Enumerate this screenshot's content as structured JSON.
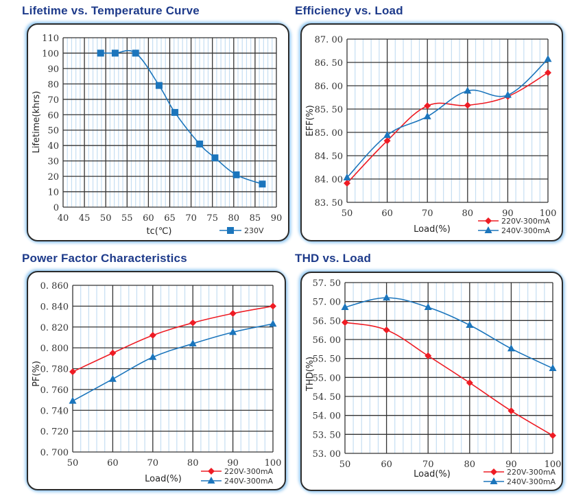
{
  "chart_data": [
    {
      "id": "lifetime",
      "type": "line",
      "title": "Lifetime vs. Temperature Curve",
      "xlabel": "tc(℃)",
      "ylabel": "Lifetime(khrs)",
      "xlim": [
        40,
        90
      ],
      "ylim": [
        0,
        110
      ],
      "xticks": [
        "40",
        "45",
        "50",
        "55",
        "60",
        "65",
        "70",
        "75",
        "80",
        "85",
        "90"
      ],
      "yticks": [
        "0",
        "10",
        "20",
        "30",
        "40",
        "50",
        "60",
        "70",
        "80",
        "90",
        "100",
        "110"
      ],
      "grid": true,
      "legend_position": "bottom-right",
      "series": [
        {
          "name": "230V",
          "color": "#1b75bc",
          "marker": "square",
          "x": [
            48.8,
            52.2,
            57.0,
            62.5,
            66.2,
            72.0,
            75.6,
            80.6,
            86.7
          ],
          "y": [
            100,
            100,
            100,
            79,
            61.5,
            41,
            32,
            21,
            15
          ]
        }
      ]
    },
    {
      "id": "efficiency",
      "type": "line",
      "title": "Efficiency vs. Load",
      "xlabel": "Load(%)",
      "ylabel": "EFF(%)",
      "xlim": [
        50,
        100
      ],
      "ylim": [
        83.5,
        87.0
      ],
      "xticks": [
        "50",
        "60",
        "70",
        "80",
        "90",
        "100"
      ],
      "yticks": [
        "83. 50",
        "84. 00",
        "84. 50",
        "85. 00",
        "85. 50",
        "86. 00",
        "86. 50",
        "87. 00"
      ],
      "grid": true,
      "legend_position": "bottom-right",
      "series": [
        {
          "name": "220V-300mA",
          "color": "#ee1c24",
          "marker": "diamond",
          "x": [
            50,
            60,
            70,
            80,
            90,
            100
          ],
          "y": [
            83.91,
            84.82,
            85.57,
            85.58,
            85.77,
            86.28
          ]
        },
        {
          "name": "240V-300mA",
          "color": "#1b75bc",
          "marker": "triangle",
          "x": [
            50,
            60,
            70,
            80,
            90,
            100
          ],
          "y": [
            84.03,
            84.94,
            85.34,
            85.89,
            85.8,
            86.57
          ]
        }
      ]
    },
    {
      "id": "powerfactor",
      "type": "line",
      "title": "Power Factor Characteristics",
      "xlabel": "Load(%)",
      "ylabel": "PF(%)",
      "xlim": [
        50,
        100
      ],
      "ylim": [
        0.7,
        0.86
      ],
      "xticks": [
        "50",
        "60",
        "70",
        "80",
        "90",
        "100"
      ],
      "yticks": [
        "0. 700",
        "0. 720",
        "0. 740",
        "0. 760",
        "0. 780",
        "0. 800",
        "0. 820",
        "0. 840",
        "0. 860"
      ],
      "grid": true,
      "legend_position": "bottom-right",
      "series": [
        {
          "name": "220V-300mA",
          "color": "#ee1c24",
          "marker": "diamond",
          "x": [
            50,
            60,
            70,
            80,
            90,
            100
          ],
          "y": [
            0.777,
            0.795,
            0.812,
            0.824,
            0.833,
            0.84
          ]
        },
        {
          "name": "240V-300mA",
          "color": "#1b75bc",
          "marker": "triangle",
          "x": [
            50,
            60,
            70,
            80,
            90,
            100
          ],
          "y": [
            0.749,
            0.77,
            0.791,
            0.804,
            0.815,
            0.823
          ]
        }
      ]
    },
    {
      "id": "thd",
      "type": "line",
      "title": "THD vs. Load",
      "xlabel": "Load(%)",
      "ylabel": "THD(%)",
      "xlim": [
        50,
        100
      ],
      "ylim": [
        53.0,
        57.5
      ],
      "xticks": [
        "50",
        "60",
        "70",
        "80",
        "90",
        "100"
      ],
      "yticks": [
        "53. 00",
        "53. 50",
        "54. 00",
        "54. 50",
        "55. 00",
        "55. 50",
        "56. 00",
        "56. 50",
        "57. 00",
        "57. 50"
      ],
      "grid": true,
      "legend_position": "bottom-right",
      "series": [
        {
          "name": "220V-300mA",
          "color": "#ee1c24",
          "marker": "diamond",
          "x": [
            50,
            60,
            70,
            80,
            90,
            100
          ],
          "y": [
            56.45,
            56.25,
            55.57,
            54.86,
            54.12,
            53.47
          ]
        },
        {
          "name": "240V-300mA",
          "color": "#1b75bc",
          "marker": "triangle",
          "x": [
            50,
            60,
            70,
            80,
            90,
            100
          ],
          "y": [
            56.85,
            57.1,
            56.85,
            56.38,
            55.76,
            55.24
          ]
        }
      ]
    }
  ],
  "colors": {
    "title": "#1d3a8a",
    "major_grid": "#333333",
    "minor_grid": "#c5def2",
    "frame_glow": "#8cc4ef"
  }
}
